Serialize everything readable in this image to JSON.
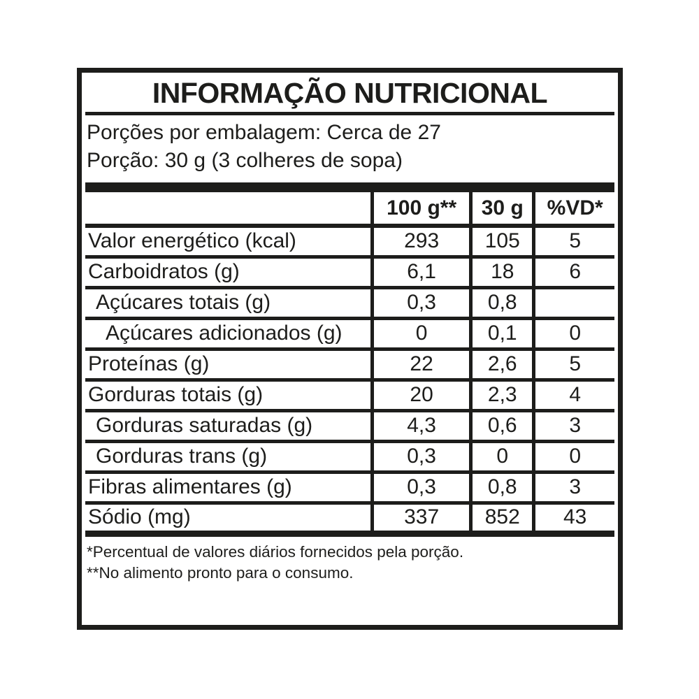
{
  "label": {
    "title": "INFORMAÇÃO NUTRICIONAL",
    "servings_line": "Porções por embalagem: Cerca de 27",
    "portion_line": "Porção: 30 g (3 colheres de sopa)",
    "table": {
      "columns": [
        "100 g**",
        "30 g",
        "%VD*"
      ],
      "rows": [
        {
          "name": "Valor energético (kcal)",
          "indent": 0,
          "per100g": "293",
          "per30g": "105",
          "pct_vd": "5"
        },
        {
          "name": "Carboidratos (g)",
          "indent": 0,
          "per100g": "6,1",
          "per30g": "18",
          "pct_vd": "6"
        },
        {
          "name": "Açúcares totais (g)",
          "indent": 1,
          "per100g": "0,3",
          "per30g": "0,8",
          "pct_vd": ""
        },
        {
          "name": "Açúcares adicionados (g)",
          "indent": 2,
          "per100g": "0",
          "per30g": "0,1",
          "pct_vd": "0"
        },
        {
          "name": "Proteínas (g)",
          "indent": 0,
          "per100g": "22",
          "per30g": "2,6",
          "pct_vd": "5"
        },
        {
          "name": "Gorduras totais (g)",
          "indent": 0,
          "per100g": "20",
          "per30g": "2,3",
          "pct_vd": "4"
        },
        {
          "name": "Gorduras saturadas (g)",
          "indent": 1,
          "per100g": "4,3",
          "per30g": "0,6",
          "pct_vd": "3"
        },
        {
          "name": "Gorduras trans (g)",
          "indent": 1,
          "per100g": "0,3",
          "per30g": "0",
          "pct_vd": "0"
        },
        {
          "name": "Fibras alimentares (g)",
          "indent": 0,
          "per100g": "0,3",
          "per30g": "0,8",
          "pct_vd": "3"
        },
        {
          "name": "Sódio (mg)",
          "indent": 0,
          "per100g": "337",
          "per30g": "852",
          "pct_vd": "43"
        }
      ]
    },
    "footnotes": [
      "*Percentual de valores diários fornecidos pela porção.",
      "**No alimento pronto para o consumo."
    ],
    "colors": {
      "ink": "#1d1d1b",
      "background": "#ffffff"
    }
  }
}
